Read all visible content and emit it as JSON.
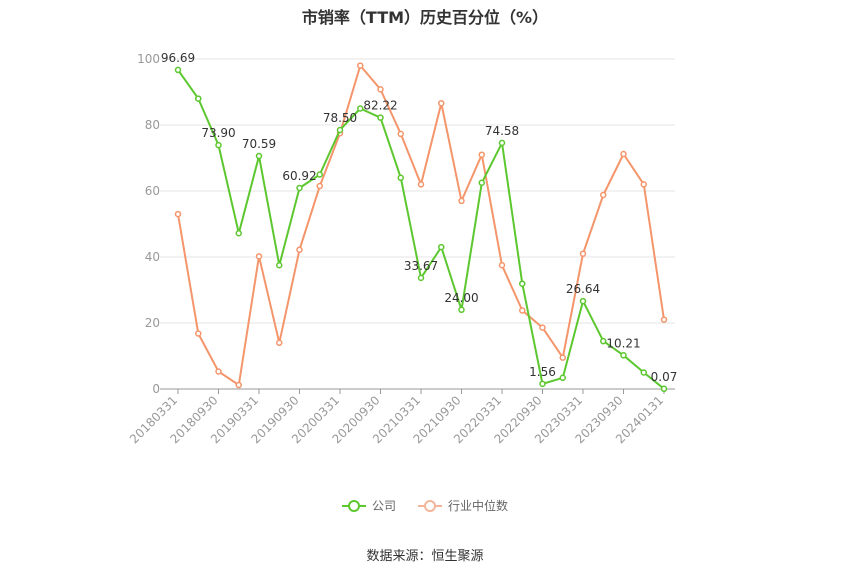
{
  "chart_data": {
    "type": "line",
    "title": "市销率（TTM）历史百分位（%）",
    "source": "数据来源：恒生聚源",
    "ylim": [
      0,
      100
    ],
    "yticks": [
      0,
      20,
      40,
      60,
      80,
      100
    ],
    "x_tick_labels": [
      "20180331",
      "20180930",
      "20190331",
      "20190930",
      "20200331",
      "20200930",
      "20210331",
      "20210930",
      "20220331",
      "20220930",
      "20230331",
      "20230930",
      "20240131"
    ],
    "x": [
      "20180331",
      "20180630",
      "20180930",
      "20181231",
      "20190331",
      "20190630",
      "20190930",
      "20191231",
      "20200331",
      "20200630",
      "20200930",
      "20201231",
      "20210331",
      "20210630",
      "20210930",
      "20211231",
      "20220331",
      "20220630",
      "20220930",
      "20221231",
      "20230331",
      "20230630",
      "20230930",
      "20231231",
      "20240131"
    ],
    "series": [
      {
        "name": "公司",
        "color": "#5cc72f",
        "values": [
          96.69,
          88.0,
          73.9,
          47.2,
          70.59,
          37.5,
          60.92,
          65.0,
          78.5,
          85.0,
          82.22,
          64.0,
          33.67,
          43.0,
          24.0,
          62.5,
          74.58,
          31.9,
          1.56,
          3.4,
          26.64,
          14.5,
          10.21,
          5.0,
          0.07
        ]
      },
      {
        "name": "行业中位数",
        "color": "#f4956b",
        "values": [
          53.0,
          16.8,
          5.3,
          1.2,
          40.2,
          14.0,
          42.2,
          61.5,
          77.5,
          98.0,
          90.8,
          77.3,
          62.0,
          86.6,
          57.0,
          71.0,
          37.5,
          23.8,
          18.6,
          9.5,
          41.0,
          58.8,
          71.2,
          62.0,
          21.0
        ]
      }
    ],
    "data_labels": [
      {
        "index": 0,
        "text": "96.69"
      },
      {
        "index": 2,
        "text": "73.90"
      },
      {
        "index": 4,
        "text": "70.59"
      },
      {
        "index": 6,
        "text": "60.92"
      },
      {
        "index": 8,
        "text": "78.50"
      },
      {
        "index": 10,
        "text": "82.22"
      },
      {
        "index": 12,
        "text": "33.67"
      },
      {
        "index": 14,
        "text": "24.00"
      },
      {
        "index": 16,
        "text": "74.58"
      },
      {
        "index": 18,
        "text": "1.56"
      },
      {
        "index": 20,
        "text": "26.64"
      },
      {
        "index": 22,
        "text": "10.21"
      },
      {
        "index": 24,
        "text": "0.07"
      }
    ],
    "grid": true,
    "legend_position": "bottom-center"
  }
}
